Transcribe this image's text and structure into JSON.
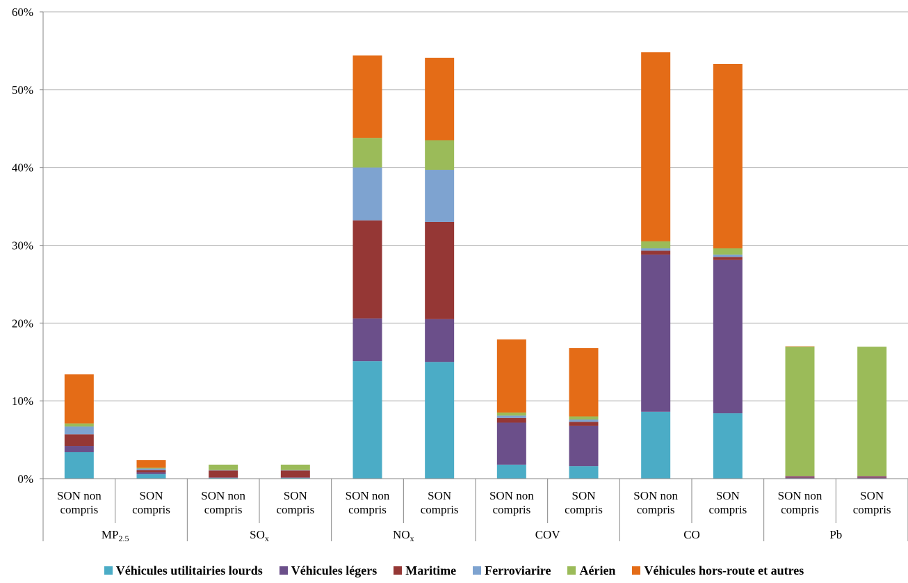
{
  "chart_data": {
    "type": "bar",
    "stacked": true,
    "groups": [
      "MP2.5",
      "SOx",
      "NOx",
      "COV",
      "CO",
      "Pb"
    ],
    "group_labels": [
      {
        "base": "MP",
        "sub": "2.5"
      },
      {
        "base": "SO",
        "sub": "x"
      },
      {
        "base": "NO",
        "sub": "x"
      },
      {
        "base": "COV",
        "sub": ""
      },
      {
        "base": "CO",
        "sub": ""
      },
      {
        "base": "Pb",
        "sub": ""
      }
    ],
    "subcategories": [
      {
        "line1": "SON non",
        "line2": "compris"
      },
      {
        "line1": "SON",
        "line2": "compris"
      }
    ],
    "ylim": [
      0,
      60
    ],
    "yticks": [
      0,
      10,
      20,
      30,
      40,
      50,
      60
    ],
    "ytick_labels": [
      "0%",
      "10%",
      "20%",
      "30%",
      "40%",
      "50%",
      "60%"
    ],
    "grid": true,
    "legend_position": "bottom",
    "series": [
      {
        "name": "Véhicules utilitairies lourds",
        "color": "#4bacc6",
        "values": [
          3.4,
          0.6,
          0.1,
          0.1,
          15.1,
          15.0,
          1.8,
          1.6,
          8.6,
          8.4,
          0.05,
          0.05
        ]
      },
      {
        "name": "Véhicules légers",
        "color": "#6b4f8a",
        "values": [
          0.8,
          0.2,
          0.05,
          0.05,
          5.5,
          5.5,
          5.4,
          5.2,
          20.2,
          19.7,
          0.1,
          0.1
        ]
      },
      {
        "name": "Maritime",
        "color": "#953735",
        "values": [
          1.5,
          0.3,
          0.9,
          0.9,
          12.6,
          12.5,
          0.6,
          0.5,
          0.5,
          0.4,
          0.15,
          0.15
        ]
      },
      {
        "name": "Ferroviarire",
        "color": "#7ea3d0",
        "values": [
          1.0,
          0.2,
          0.05,
          0.05,
          6.8,
          6.7,
          0.3,
          0.3,
          0.3,
          0.3,
          0.05,
          0.05
        ]
      },
      {
        "name": "Aérien",
        "color": "#9bbb59",
        "values": [
          0.4,
          0.1,
          0.7,
          0.7,
          3.8,
          3.8,
          0.4,
          0.4,
          0.9,
          0.8,
          16.6,
          16.6
        ]
      },
      {
        "name": "Véhicules hors-route et autres",
        "color": "#e46c17",
        "values": [
          6.3,
          1.0,
          0.0,
          0.0,
          10.6,
          10.6,
          9.4,
          8.8,
          24.3,
          23.7,
          0.05,
          0.0
        ]
      }
    ]
  }
}
